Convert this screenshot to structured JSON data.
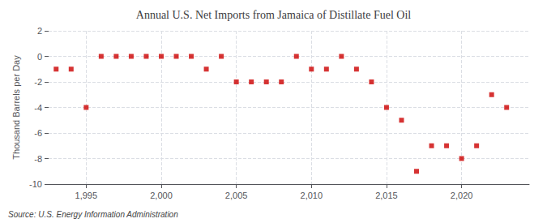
{
  "chart_data": {
    "type": "scatter",
    "title": "Annual U.S. Net Imports from Jamaica of Distillate Fuel Oil",
    "y_label": "Thousand Barrels per Day",
    "annotations": [
      "Source: U.S. Energy Information Administration"
    ],
    "x": [
      1993,
      1994,
      1995,
      1996,
      1997,
      1998,
      1999,
      2000,
      2001,
      2002,
      2003,
      2004,
      2005,
      2006,
      2007,
      2008,
      2009,
      2010,
      2011,
      2012,
      2013,
      2014,
      2015,
      2016,
      2017,
      2018,
      2019,
      2020,
      2021,
      2022,
      2023
    ],
    "values": [
      -1,
      -1,
      -4,
      0,
      0,
      0,
      0,
      0,
      0,
      0,
      -1,
      0,
      -2,
      -2,
      -2,
      -2,
      0,
      -1,
      -1,
      0,
      -1,
      -2,
      -4,
      -5,
      -9,
      -7,
      -7,
      -8,
      -7,
      -3,
      -4
    ],
    "color": "#CC0000",
    "marker": "square",
    "xlim": [
      1992.5,
      2024.5
    ],
    "xticks": [
      1995,
      2000,
      2005,
      2010,
      2015,
      2020
    ],
    "ylim": [
      -10,
      2
    ],
    "yticks": [
      -10,
      -8,
      -6,
      -4,
      -2,
      0,
      2
    ],
    "grid": true
  }
}
